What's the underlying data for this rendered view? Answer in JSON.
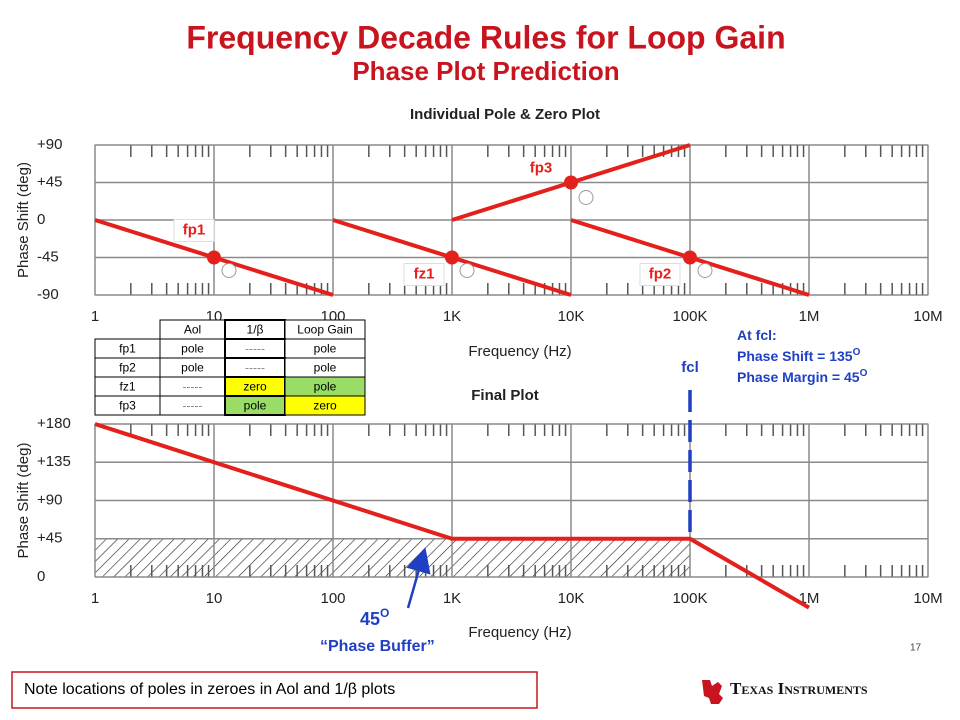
{
  "slide": {
    "title": "Frequency Decade Rules for Loop Gain",
    "subtitle": "Phase Plot Prediction",
    "table": {
      "header": [
        "Aol",
        "1/β",
        "Loop Gain"
      ],
      "rows": [
        [
          "fp1",
          "pole",
          "-----",
          "pole"
        ],
        [
          "fp2",
          "pole",
          "-----",
          "pole"
        ],
        [
          "fz1",
          "-----",
          "zero",
          "pole"
        ],
        [
          "fp3",
          "-----",
          "pole",
          "zero"
        ]
      ]
    },
    "note": "Note locations of poles in zeroes in Aol and 1/β plots",
    "page_number": "17",
    "logo": "Texas Instruments"
  },
  "chart_data": [
    {
      "type": "line",
      "title": "Individual Pole & Zero Plot",
      "xlabel": "Frequency (Hz)",
      "ylabel": "Phase Shift (deg)",
      "xscale": "log",
      "xlim": [
        1,
        10000000
      ],
      "xticks": [
        1,
        10,
        100,
        {
          "value": 1000,
          "label": "1K"
        },
        {
          "value": 10000,
          "label": "10K"
        },
        {
          "value": 100000,
          "label": "100K"
        },
        {
          "value": 1000000,
          "label": "1M"
        },
        {
          "value": 10000000,
          "label": "10M"
        }
      ],
      "ylim": [
        -90,
        90
      ],
      "yticks": [
        -90,
        -45,
        0,
        {
          "value": 45,
          "label": "+45"
        },
        {
          "value": 90,
          "label": "+90"
        }
      ],
      "grid": true,
      "markers": true,
      "series": [
        {
          "name": "fp1",
          "color": "#e3201b",
          "x": [
            1,
            10,
            100
          ],
          "values": [
            0,
            -45,
            -90
          ]
        },
        {
          "name": "fz1",
          "color": "#e3201b",
          "x": [
            100,
            1000,
            10000
          ],
          "values": [
            0,
            -45,
            -90
          ]
        },
        {
          "name": "fp3",
          "color": "#e3201b",
          "x": [
            1000,
            10000,
            100000
          ],
          "values": [
            0,
            45,
            90
          ]
        },
        {
          "name": "fp2",
          "color": "#e3201b",
          "x": [
            10000,
            100000,
            1000000
          ],
          "values": [
            0,
            -45,
            -90
          ]
        }
      ]
    },
    {
      "type": "line",
      "title": "Final Plot",
      "xlabel": "Frequency (Hz)",
      "ylabel": "Phase Shift (deg)",
      "xscale": "log",
      "xlim": [
        1,
        10000000
      ],
      "xticks": [
        1,
        10,
        100,
        {
          "value": 1000,
          "label": "1K"
        },
        {
          "value": 10000,
          "label": "10K"
        },
        {
          "value": 100000,
          "label": "100K"
        },
        {
          "value": 1000000,
          "label": "1M"
        },
        {
          "value": 10000000,
          "label": "10M"
        }
      ],
      "ylim": [
        0,
        180
      ],
      "yticks": [
        0,
        {
          "value": 45,
          "label": "+45"
        },
        {
          "value": 90,
          "label": "+90"
        },
        {
          "value": 135,
          "label": "+135"
        },
        {
          "value": 180,
          "label": "+180"
        }
      ],
      "grid": true,
      "markers": false,
      "series": [
        {
          "color": "#e3201b",
          "x": [
            1,
            1000,
            100000,
            1000000
          ],
          "values": [
            180,
            45,
            45,
            -36
          ]
        }
      ],
      "hatch": {
        "x": [
          1,
          100000
        ],
        "values": [
          0,
          45
        ]
      },
      "marker_line": {
        "x": 100000,
        "label": "fcl",
        "color": "#1f3fc4"
      },
      "annotations": [
        {
          "text": "At fcl:"
        },
        {
          "text": "Phase Shift = 135",
          "sup": "O"
        },
        {
          "text": "Phase Margin = 45",
          "sup": "O"
        }
      ],
      "buffer": [
        {
          "text": "45",
          "sup": "O"
        },
        {
          "text": "“Phase Buffer”"
        }
      ]
    }
  ]
}
